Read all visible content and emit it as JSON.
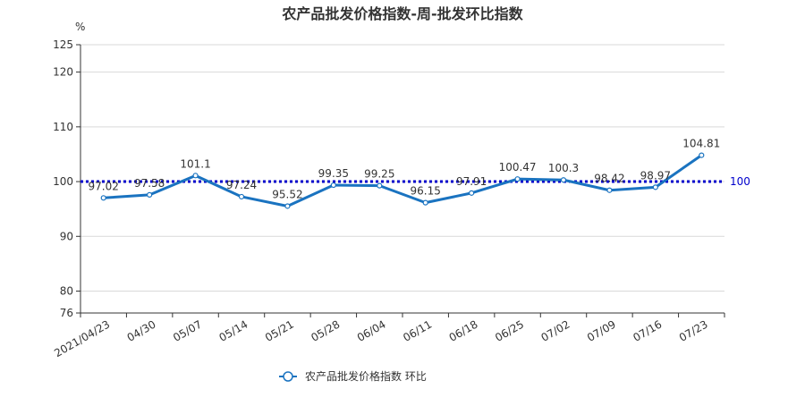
{
  "chart_data": {
    "type": "line",
    "title": "农产品批发价格指数-周-批发环比指数",
    "ylabel": "%",
    "categories": [
      "2021/04/23",
      "04/30",
      "05/07",
      "05/14",
      "05/21",
      "05/28",
      "06/04",
      "06/11",
      "06/18",
      "06/25",
      "07/02",
      "07/09",
      "07/16",
      "07/23"
    ],
    "series": [
      {
        "name": "农产品批发价格指数  环比",
        "values": [
          97.02,
          97.58,
          101.1,
          97.24,
          95.52,
          99.35,
          99.25,
          96.15,
          97.91,
          100.47,
          100.3,
          98.42,
          98.97,
          104.81
        ],
        "color": "#1a73c0"
      }
    ],
    "ylim": [
      76,
      125
    ],
    "yticks": [
      76,
      80,
      90,
      100,
      110,
      120,
      125
    ],
    "reference_line": {
      "value": 100,
      "label": "100",
      "color": "#0000cc"
    },
    "grid": true,
    "legend_position": "bottom-center"
  }
}
